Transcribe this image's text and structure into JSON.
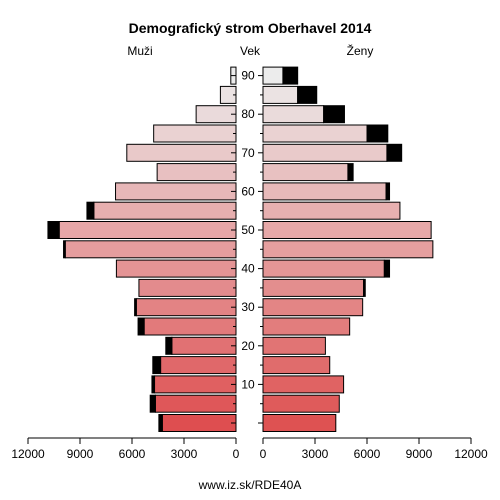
{
  "chart_data": {
    "type": "bar",
    "title": "Demografický strom Oberhavel 2014",
    "left_label": "Muži",
    "center_label": "Vek",
    "right_label": "Ženy",
    "footer": "www.iz.sk/RDE40A",
    "x_ticks_left": [
      "12000",
      "9000",
      "6000",
      "3000",
      "0"
    ],
    "x_ticks_right": [
      "0",
      "3000",
      "6000",
      "9000",
      "12000"
    ],
    "xlim": [
      0,
      12000
    ],
    "y_ticks": [
      "10",
      "20",
      "30",
      "40",
      "50",
      "60",
      "70",
      "80",
      "90"
    ],
    "categories": [
      "0-4",
      "5-9",
      "10-14",
      "15-19",
      "20-24",
      "25-29",
      "30-34",
      "35-39",
      "40-44",
      "45-49",
      "50-54",
      "55-59",
      "60-64",
      "65-69",
      "70-74",
      "75-79",
      "80-84",
      "85-89",
      "90+"
    ],
    "series": [
      {
        "name": "Muži",
        "side": "left",
        "values": [
          4250,
          4650,
          4700,
          4350,
          3700,
          5300,
          5750,
          5600,
          6900,
          9850,
          10200,
          8200,
          6950,
          4550,
          6300,
          4750,
          2300,
          900,
          300
        ],
        "excess": [
          200,
          300,
          150,
          450,
          350,
          350,
          100,
          0,
          0,
          100,
          650,
          400,
          0,
          0,
          0,
          0,
          0,
          0,
          0
        ]
      },
      {
        "name": "Ženy",
        "side": "right",
        "values": [
          4200,
          4400,
          4650,
          3850,
          3600,
          5000,
          5750,
          5800,
          7000,
          9800,
          9700,
          7900,
          7100,
          4900,
          7150,
          6000,
          3500,
          2000,
          1150
        ],
        "excess": [
          0,
          0,
          0,
          0,
          0,
          0,
          0,
          100,
          300,
          0,
          0,
          0,
          200,
          300,
          850,
          1200,
          1200,
          1100,
          850
        ]
      }
    ]
  }
}
